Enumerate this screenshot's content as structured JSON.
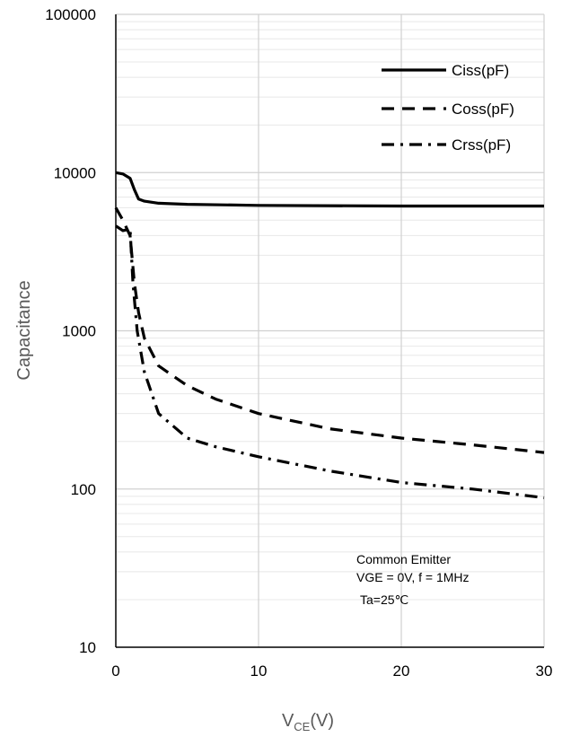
{
  "chart_data": {
    "type": "line",
    "xlabel_main": "V",
    "xlabel_sub": "CE",
    "xlabel_unit": "(V)",
    "ylabel": "Capacitance",
    "xlim": [
      0,
      30
    ],
    "ylim": [
      10,
      100000
    ],
    "yscale": "log",
    "grid": true,
    "legend_position": "top-right",
    "x_ticks": [
      "0",
      "10",
      "20",
      "30"
    ],
    "y_ticks": [
      "10",
      "100",
      "1000",
      "10000",
      "100000"
    ],
    "series": [
      {
        "name": "Ciss(pF)",
        "style": "solid",
        "x": [
          0,
          0.5,
          1,
          1.3,
          1.6,
          2,
          3,
          5,
          10,
          20,
          30
        ],
        "y": [
          10000,
          9800,
          9200,
          7800,
          6800,
          6600,
          6400,
          6300,
          6200,
          6150,
          6150
        ]
      },
      {
        "name": "Coss(pF)",
        "style": "dash",
        "x": [
          0,
          0.5,
          1,
          1.3,
          1.6,
          2,
          3,
          5,
          7,
          10,
          15,
          20,
          25,
          30
        ],
        "y": [
          6000,
          5000,
          4000,
          2000,
          1300,
          900,
          600,
          450,
          370,
          300,
          240,
          210,
          190,
          170
        ]
      },
      {
        "name": "Crss(pF)",
        "style": "dash-dot",
        "x": [
          0,
          0.5,
          1,
          1.2,
          1.5,
          2,
          3,
          5,
          7,
          10,
          15,
          20,
          25,
          30
        ],
        "y": [
          4600,
          4300,
          4400,
          2000,
          1000,
          550,
          300,
          210,
          185,
          160,
          130,
          110,
          100,
          88
        ]
      }
    ],
    "annotations": [
      "Common Emitter",
      "VGE = 0V, f = 1MHz",
      "Ta=25℃"
    ]
  }
}
